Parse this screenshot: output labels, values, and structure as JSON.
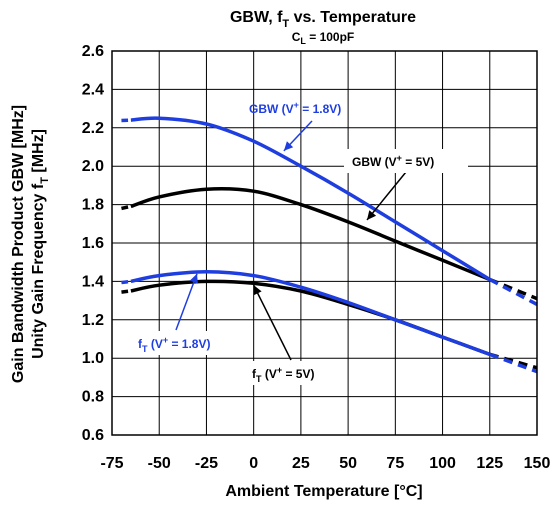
{
  "chart_data": {
    "type": "line",
    "title": "GBW, fT vs. Temperature",
    "title_parts": {
      "pre": "GBW, f",
      "sub": "T",
      "post": " vs. Temperature"
    },
    "subtitle": "CL = 100pF",
    "subtitle_parts": {
      "pre": "C",
      "sub": "L",
      "post": " = 100pF"
    },
    "xlabel": "Ambient Temperature [°C]",
    "ylabel_lines": [
      "Gain Bandwidth Product GBW [MHz]",
      "Unity Gain Frequency fT [MHz]"
    ],
    "ylabel2_parts": {
      "pre": "Unity Gain Frequency f",
      "sub": "T",
      "post": " [MHz]"
    },
    "xlim": [
      -75,
      150
    ],
    "ylim": [
      0.6,
      2.6
    ],
    "xticks": [
      -75,
      -50,
      -25,
      0,
      25,
      50,
      75,
      100,
      125,
      150
    ],
    "yticks": [
      0.6,
      0.8,
      1.0,
      1.2,
      1.4,
      1.6,
      1.8,
      2.0,
      2.2,
      2.4,
      2.6
    ],
    "ytick_labels": [
      "0.6",
      "0.8",
      "1.0",
      "1.2",
      "1.4",
      "1.6",
      "1.8",
      "2.0",
      "2.2",
      "2.4",
      "2.6"
    ],
    "grid": true,
    "colors": {
      "blue": "#1f3ee0",
      "black": "#000000"
    },
    "series": [
      {
        "name": "GBW (V+ = 1.8V)",
        "color": "#1f3ee0",
        "x": [
          -65,
          -50,
          -25,
          0,
          25,
          50,
          75,
          100,
          125
        ],
        "y": [
          2.24,
          2.25,
          2.22,
          2.13,
          2.0,
          1.86,
          1.71,
          1.56,
          1.41
        ],
        "extrapolated": {
          "x": [
            125,
            150
          ],
          "y": [
            1.41,
            1.28
          ]
        }
      },
      {
        "name": "GBW (V+ = 5V)",
        "color": "#000000",
        "x": [
          -65,
          -50,
          -25,
          0,
          25,
          50,
          75,
          100,
          125
        ],
        "y": [
          1.79,
          1.84,
          1.88,
          1.87,
          1.8,
          1.71,
          1.61,
          1.51,
          1.41
        ],
        "extrapolated": {
          "x": [
            125,
            150
          ],
          "y": [
            1.41,
            1.31
          ]
        }
      },
      {
        "name": "fT (V+ = 1.8V)",
        "color": "#1f3ee0",
        "x": [
          -65,
          -50,
          -25,
          0,
          25,
          50,
          75,
          100,
          125
        ],
        "y": [
          1.4,
          1.43,
          1.45,
          1.43,
          1.37,
          1.29,
          1.2,
          1.11,
          1.02
        ],
        "extrapolated": {
          "x": [
            125,
            150
          ],
          "y": [
            1.02,
            0.93
          ]
        }
      },
      {
        "name": "fT (V+ = 5V)",
        "color": "#000000",
        "x": [
          -65,
          -50,
          -25,
          0,
          25,
          50,
          75,
          100,
          125
        ],
        "y": [
          1.35,
          1.38,
          1.4,
          1.39,
          1.35,
          1.28,
          1.2,
          1.11,
          1.02
        ],
        "extrapolated": {
          "x": [
            125,
            150
          ],
          "y": [
            1.02,
            0.95
          ]
        }
      }
    ],
    "annotations": [
      {
        "id": "gbw18",
        "label_parts": {
          "pre": "GBW (V",
          "sup": "+",
          "post": " = 1.8V)"
        },
        "color": "#1f3ee0",
        "boxed": false,
        "point_to": [
          16,
          2.08
        ]
      },
      {
        "id": "gbw5",
        "label_parts": {
          "pre": "GBW (V",
          "sup": "+",
          "post": " = 5V)"
        },
        "color": "#000000",
        "boxed": true,
        "point_to": [
          60,
          1.72
        ]
      },
      {
        "id": "ft18",
        "label_parts": {
          "pre": "f",
          "sub": "T",
          "mid": " (V",
          "sup": "+",
          "post": " = 1.8V)"
        },
        "color": "#1f3ee0",
        "boxed": true,
        "point_to": [
          -30,
          1.44
        ]
      },
      {
        "id": "ft5",
        "label_parts": {
          "pre": "f",
          "sub": "T",
          "mid": " (V",
          "sup": "+",
          "post": " = 5V)"
        },
        "color": "#000000",
        "boxed": true,
        "point_to": [
          0,
          1.38
        ]
      }
    ]
  }
}
